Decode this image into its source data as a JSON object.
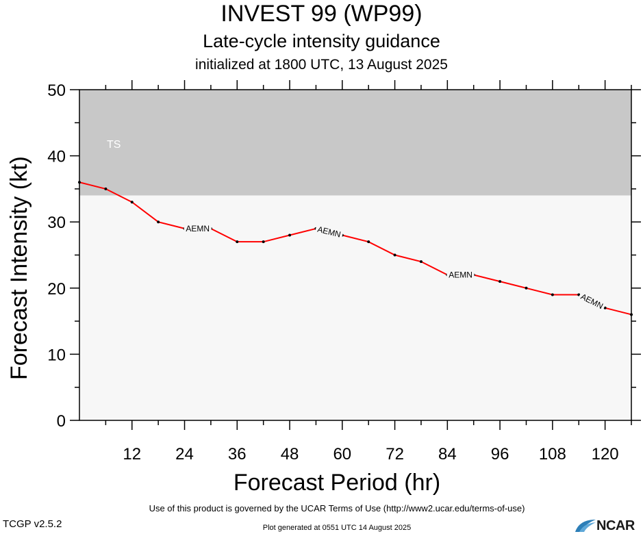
{
  "header": {
    "title": "INVEST 99 (WP99)",
    "subtitle": "Late-cycle intensity guidance",
    "initialized": "initialized at 1800 UTC, 13 August 2025"
  },
  "footer": {
    "terms": "Use of this product is governed by the UCAR Terms of Use (http://www2.ucar.edu/terms-of-use)",
    "generated": "Plot generated at 0551 UTC   14 August 2025",
    "version": "TCGP v2.5.2",
    "logo_text": "NCAR"
  },
  "chart_data": {
    "type": "line",
    "xlabel": "Forecast Period (hr)",
    "ylabel": "Forecast Intensity (kt)",
    "xlim": [
      0,
      126
    ],
    "ylim": [
      0,
      50
    ],
    "xticks": [
      12,
      24,
      36,
      48,
      60,
      72,
      84,
      96,
      108,
      120
    ],
    "yticks": [
      0,
      10,
      20,
      30,
      40,
      50
    ],
    "grid": false,
    "bands": [
      {
        "label": "TS",
        "from": 34,
        "to": 50,
        "color": "#c8c8c8"
      },
      {
        "label": "",
        "from": 0,
        "to": 34,
        "color": "#f7f7f7"
      }
    ],
    "series": [
      {
        "name": "AEMN",
        "color": "#ff0000",
        "x": [
          0,
          6,
          12,
          18,
          24,
          30,
          36,
          42,
          48,
          54,
          60,
          66,
          72,
          78,
          84,
          90,
          96,
          102,
          108,
          114,
          120,
          126
        ],
        "y": [
          36,
          35,
          33,
          30,
          29,
          29,
          27,
          27,
          28,
          29,
          28,
          27,
          25,
          24,
          22,
          22,
          21,
          20,
          19,
          19,
          17,
          16
        ],
        "labels_at": [
          27,
          57,
          87,
          117
        ]
      }
    ]
  }
}
